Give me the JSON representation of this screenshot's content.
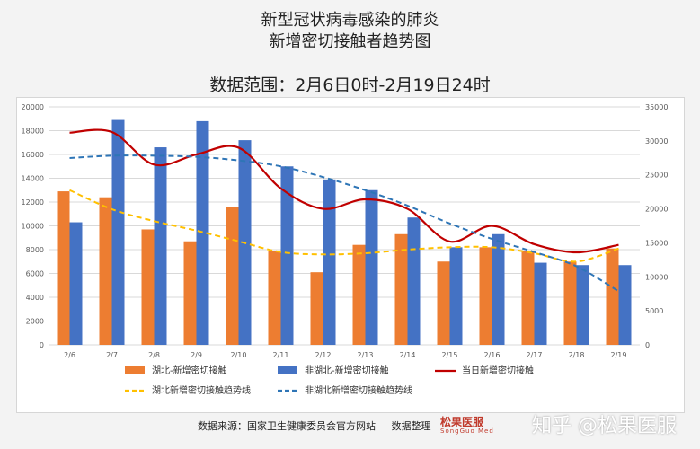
{
  "header": {
    "title_line1": "新型冠状病毒感染的肺炎",
    "title_line2": "新增密切接触者趋势图",
    "range_label": "数据范围：2月6日0时-2月19日24时"
  },
  "footer": {
    "source_label": "数据来源：国家卫生健康委员会官方网站",
    "organizer_label": "数据整理",
    "brand_name": "松果医服",
    "brand_sub": "SongGuo Med",
    "watermark": "知乎 @松果医服"
  },
  "colors": {
    "orange": "#ed7d31",
    "blue": "#4472c4",
    "red": "#c00000",
    "yellow": "#ffc000",
    "dashblue": "#2e75b6"
  },
  "chart_data": {
    "type": "bar",
    "categories": [
      "2/6",
      "2/7",
      "2/8",
      "2/9",
      "2/10",
      "2/11",
      "2/12",
      "2/13",
      "2/14",
      "2/15",
      "2/16",
      "2/17",
      "2/18",
      "2/19"
    ],
    "series": [
      {
        "name": "湖北-新增密切接触",
        "kind": "bar",
        "axis": "left",
        "color": "#ed7d31",
        "values": [
          12900,
          12400,
          9700,
          8700,
          11600,
          7900,
          6100,
          8400,
          9300,
          7000,
          8200,
          7900,
          7000,
          8100
        ]
      },
      {
        "name": "非湖北-新增密切接触",
        "kind": "bar",
        "axis": "left",
        "color": "#4472c4",
        "values": [
          10300,
          18900,
          16600,
          18800,
          17200,
          15000,
          13900,
          13000,
          10700,
          8200,
          9300,
          6900,
          6700,
          6700
        ]
      },
      {
        "name": "当日新增密切接触",
        "kind": "line",
        "axis": "right",
        "color": "#c00000",
        "values": [
          31200,
          31300,
          26500,
          28000,
          29000,
          23000,
          20000,
          21400,
          20000,
          15200,
          17500,
          14800,
          13600,
          14700
        ]
      },
      {
        "name": "湖北新增密切接触趋势线",
        "kind": "trend",
        "axis": "left",
        "color": "#ffc000",
        "values": [
          13000,
          11400,
          10400,
          9600,
          8700,
          7800,
          7600,
          7700,
          8000,
          8200,
          8200,
          7700,
          7000,
          8100
        ]
      },
      {
        "name": "非湖北新增密切接触趋势线",
        "kind": "trend",
        "axis": "left",
        "color": "#2e75b6",
        "values": [
          15700,
          15900,
          15900,
          15800,
          15500,
          15000,
          14100,
          13000,
          11700,
          10200,
          8900,
          7800,
          6600,
          4500
        ]
      }
    ],
    "left_axis": {
      "min": 0,
      "max": 20000,
      "step": 2000,
      "ticks": [
        "0",
        "2000",
        "4000",
        "6000",
        "8000",
        "10000",
        "12000",
        "14000",
        "16000",
        "18000",
        "20000"
      ]
    },
    "right_axis": {
      "min": 0,
      "max": 35000,
      "step": 5000,
      "ticks": [
        "0",
        "5000",
        "10000",
        "15000",
        "20000",
        "25000",
        "30000",
        "35000"
      ]
    },
    "grid": true,
    "legend_position": "bottom"
  }
}
